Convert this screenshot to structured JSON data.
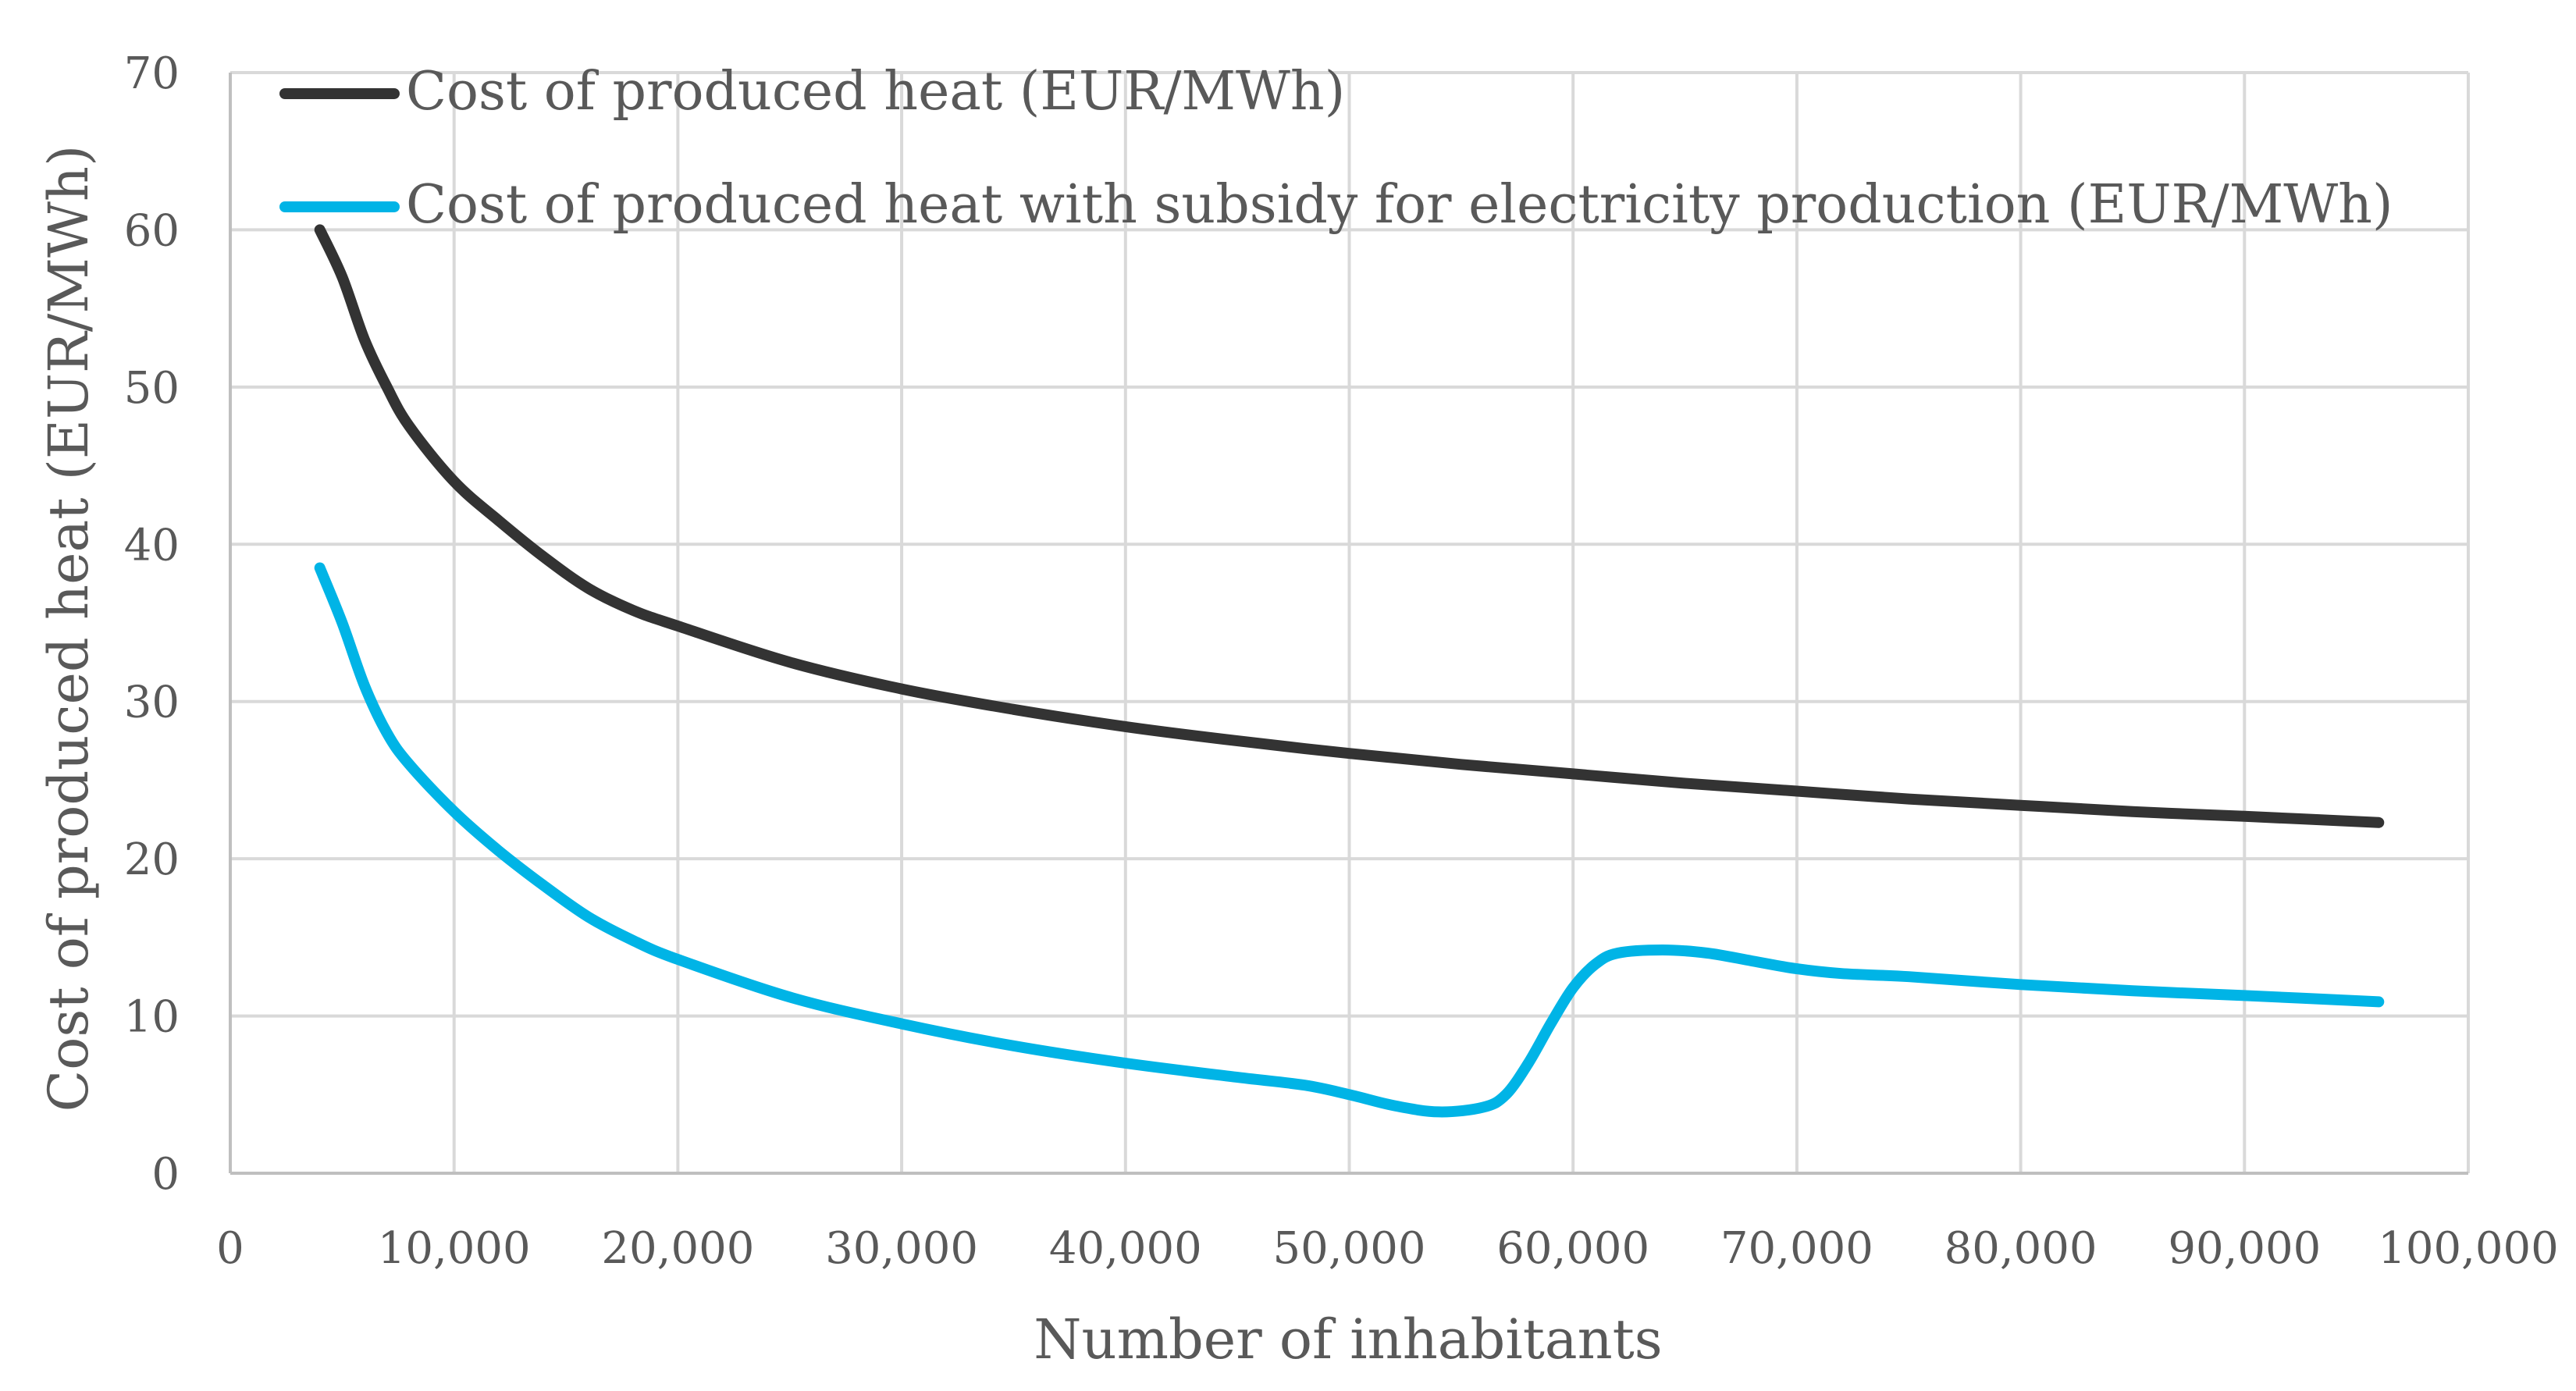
{
  "chart_data": {
    "type": "line",
    "title": "",
    "xlabel": "Number of inhabitants",
    "ylabel": "Cost of produced heat (EUR/MWh)",
    "xlim": [
      0,
      100000
    ],
    "ylim": [
      0,
      70
    ],
    "x_ticks": [
      0,
      10000,
      20000,
      30000,
      40000,
      50000,
      60000,
      70000,
      80000,
      90000,
      100000
    ],
    "x_tick_labels": [
      "0",
      "10,000",
      "20,000",
      "30,000",
      "40,000",
      "50,000",
      "60,000",
      "70,000",
      "80,000",
      "90,000",
      "100,000"
    ],
    "y_ticks": [
      0,
      10,
      20,
      30,
      40,
      50,
      60,
      70
    ],
    "y_tick_labels": [
      "0",
      "10",
      "20",
      "30",
      "40",
      "50",
      "60",
      "70"
    ],
    "grid": true,
    "legend_position": "top-left",
    "series": [
      {
        "name": "Cost of produced heat (EUR/MWh)",
        "color": "#333333",
        "x": [
          4000,
          5000,
          6000,
          7000,
          8000,
          10000,
          12000,
          14000,
          16000,
          18000,
          20000,
          25000,
          30000,
          35000,
          40000,
          45000,
          50000,
          55000,
          60000,
          65000,
          70000,
          75000,
          80000,
          85000,
          90000,
          96000
        ],
        "y": [
          60.0,
          57.0,
          53.0,
          50.0,
          47.5,
          44.0,
          41.5,
          39.2,
          37.2,
          35.8,
          34.8,
          32.5,
          30.8,
          29.5,
          28.4,
          27.5,
          26.7,
          26.0,
          25.4,
          24.8,
          24.3,
          23.8,
          23.4,
          23.0,
          22.7,
          22.3
        ]
      },
      {
        "name": "Cost of produced heat with subsidy for electricity production (EUR/MWh)",
        "color": "#00b4e6",
        "x": [
          4000,
          5000,
          6000,
          7000,
          8000,
          10000,
          12000,
          14000,
          16000,
          18000,
          20000,
          25000,
          30000,
          35000,
          40000,
          45000,
          48000,
          50000,
          52000,
          54000,
          56000,
          57000,
          58000,
          59000,
          60000,
          61000,
          62000,
          64000,
          66000,
          68000,
          70000,
          72000,
          75000,
          80000,
          85000,
          90000,
          96000
        ],
        "y": [
          38.5,
          35.0,
          31.0,
          28.0,
          26.0,
          23.0,
          20.5,
          18.3,
          16.3,
          14.8,
          13.6,
          11.2,
          9.5,
          8.1,
          7.0,
          6.1,
          5.6,
          5.0,
          4.3,
          3.9,
          4.2,
          5.0,
          7.0,
          9.5,
          11.8,
          13.3,
          14.0,
          14.2,
          14.0,
          13.5,
          13.0,
          12.7,
          12.5,
          12.0,
          11.6,
          11.3,
          10.9
        ]
      }
    ]
  }
}
